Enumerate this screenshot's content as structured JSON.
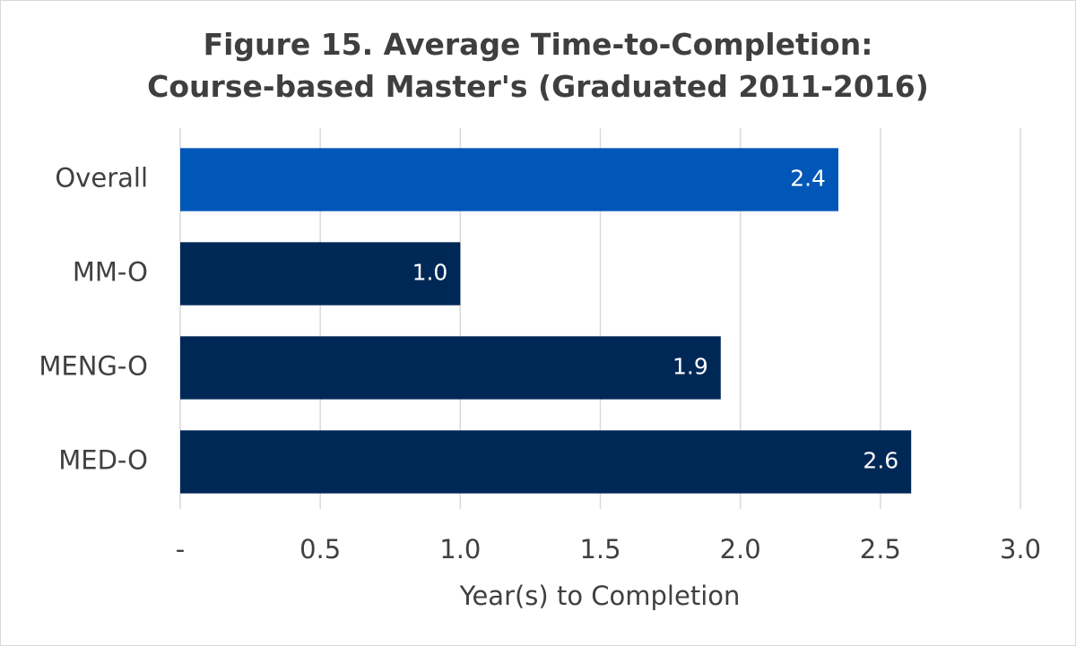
{
  "chart_data": {
    "type": "barh",
    "title": "Figure 15. Average Time-to-Completion: Course-based Master's (Graduated 2011-2016)",
    "xlabel": "Year(s) to Completion",
    "categories": [
      "Overall",
      "MM-O",
      "MENG-O",
      "MED-O"
    ],
    "values": [
      2.35,
      1.0,
      1.93,
      2.61
    ],
    "value_labels": [
      "2.4",
      "1.0",
      "1.9",
      "2.6"
    ],
    "colors": [
      "#0057b8",
      "#002856",
      "#002856",
      "#002856"
    ],
    "xlim": [
      0,
      3.0
    ],
    "xticks": [
      {
        "value": 0,
        "label": "-"
      },
      0.5,
      {
        "value": 1.0,
        "label": "1.0"
      },
      1.5,
      {
        "value": 2.0,
        "label": "2.0"
      },
      2.5,
      {
        "value": 3.0,
        "label": "3.0"
      }
    ],
    "grid": true
  }
}
